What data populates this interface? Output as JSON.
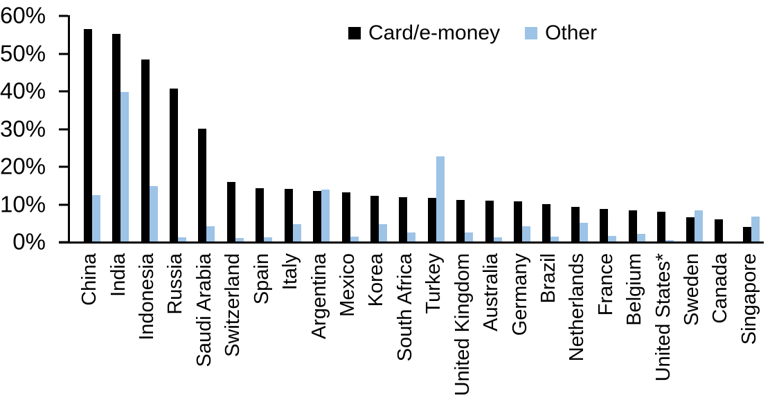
{
  "chart_data": {
    "type": "bar",
    "title": "",
    "xlabel": "",
    "ylabel": "",
    "ylim": [
      0,
      60
    ],
    "y_ticks": [
      "0%",
      "10%",
      "20%",
      "30%",
      "40%",
      "50%",
      "60%"
    ],
    "grid": false,
    "legend_position": "top-center",
    "categories": [
      "China",
      "India",
      "Indonesia",
      "Russia",
      "Saudi Arabia",
      "Switzerland",
      "Spain",
      "Italy",
      "Argentina",
      "Mexico",
      "Korea",
      "South Africa",
      "Turkey",
      "United Kingdom",
      "Australia",
      "Germany",
      "Brazil",
      "Netherlands",
      "France",
      "Belgium",
      "United States*",
      "Sweden",
      "Canada",
      "Singapore"
    ],
    "series": [
      {
        "name": "Card/e-money",
        "color": "#000000",
        "values": [
          56.3,
          55.0,
          48.2,
          40.6,
          29.9,
          15.7,
          14.2,
          14.0,
          13.4,
          13.0,
          12.2,
          11.7,
          11.5,
          11.0,
          10.8,
          10.6,
          10.0,
          9.2,
          8.7,
          8.2,
          7.9,
          6.5,
          5.9,
          3.9
        ]
      },
      {
        "name": "Other",
        "color": "#9DC3E6",
        "values": [
          12.3,
          39.7,
          14.6,
          1.1,
          4.0,
          0.9,
          1.1,
          4.5,
          13.8,
          1.3,
          4.6,
          2.3,
          22.6,
          2.4,
          1.1,
          4.0,
          1.3,
          4.9,
          1.5,
          2.1,
          0.4,
          8.2,
          0,
          6.6
        ]
      }
    ]
  }
}
